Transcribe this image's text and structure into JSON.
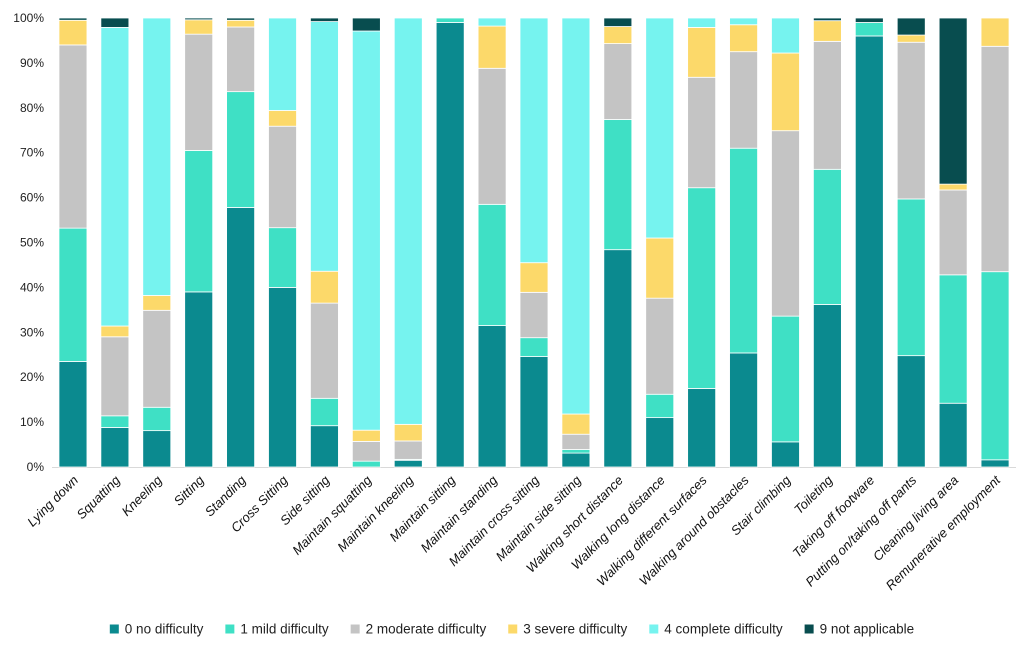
{
  "chart_data": {
    "type": "bar",
    "stacked": true,
    "percent": true,
    "ylim": [
      0,
      100
    ],
    "yticks": [
      "0%",
      "10%",
      "20%",
      "30%",
      "40%",
      "50%",
      "60%",
      "70%",
      "80%",
      "90%",
      "100%"
    ],
    "grid": false,
    "legend_position": "bottom",
    "categories": [
      "Lying down",
      "Squatting",
      "Kneeling",
      "Sitting",
      "Standing",
      "Cross Sitting",
      "Side sitting",
      "Maintain squatting",
      "Maintain kneeling",
      "Maintain sitting",
      "Maintain standing",
      "Maintain cross sitting",
      "Maintain side sitting",
      "Walking short distance",
      "Walking long distance",
      "Walking different surfaces",
      "Walking around obstacles",
      "Stair climbing",
      "Toileting",
      "Taking off footware",
      "Putting on/taking off pants",
      "Cleaning living area",
      "Remunerative employment"
    ],
    "series": [
      {
        "name": "0 no difficulty",
        "color": "#0b8a8f",
        "values": [
          23.5,
          8.8,
          8.1,
          39.0,
          57.8,
          40.0,
          9.2,
          0.0,
          1.5,
          99.0,
          31.5,
          24.6,
          3.1,
          48.4,
          11.0,
          17.5,
          25.4,
          5.6,
          36.2,
          96.0,
          24.8,
          14.2,
          1.6
        ]
      },
      {
        "name": "1 mild difficulty",
        "color": "#3fe0c5",
        "values": [
          29.7,
          2.6,
          5.2,
          31.5,
          25.8,
          13.3,
          6.1,
          1.3,
          0.2,
          1.0,
          27.0,
          4.2,
          0.8,
          29.0,
          5.2,
          44.7,
          45.6,
          28.0,
          30.1,
          3.0,
          34.9,
          28.6,
          41.9
        ]
      },
      {
        "name": "2 moderate difficulty",
        "color": "#c4c4c4",
        "values": [
          40.8,
          17.6,
          21.6,
          25.9,
          14.4,
          22.6,
          21.2,
          4.4,
          4.1,
          0.0,
          30.3,
          10.1,
          3.4,
          16.9,
          21.4,
          24.6,
          21.5,
          41.3,
          28.5,
          0.0,
          34.9,
          18.9,
          50.2
        ]
      },
      {
        "name": "3 severe difficulty",
        "color": "#fcd96a",
        "values": [
          5.5,
          2.4,
          3.3,
          3.2,
          1.5,
          3.5,
          7.1,
          2.5,
          3.7,
          0.0,
          9.4,
          6.6,
          4.5,
          3.8,
          13.4,
          11.1,
          6.0,
          17.3,
          4.6,
          0.0,
          1.6,
          1.3,
          6.3
        ]
      },
      {
        "name": "4 complete difficulty",
        "color": "#76f3ef",
        "values": [
          0.0,
          66.5,
          61.8,
          0.0,
          0.0,
          20.6,
          55.6,
          88.9,
          90.5,
          0.0,
          1.8,
          54.5,
          88.2,
          0.0,
          49.0,
          2.1,
          1.5,
          7.8,
          0.0,
          0.0,
          0.0,
          0.0,
          0.0
        ]
      },
      {
        "name": "9 not applicable",
        "color": "#084d4f",
        "values": [
          0.5,
          2.1,
          0.0,
          0.4,
          0.5,
          0.0,
          0.8,
          2.9,
          0.0,
          0.0,
          0.0,
          0.0,
          0.0,
          1.9,
          0.0,
          0.0,
          0.0,
          0.0,
          0.6,
          1.0,
          3.8,
          37.0,
          0.0
        ]
      }
    ]
  }
}
